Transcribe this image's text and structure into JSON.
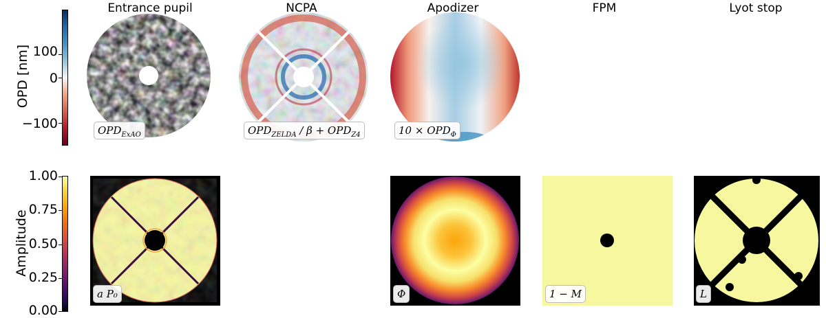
{
  "figure": {
    "columns": [
      {
        "title": "Entrance pupil"
      },
      {
        "title": "NCPA"
      },
      {
        "title": "Apodizer"
      },
      {
        "title": "FPM"
      },
      {
        "title": "Lyot stop"
      }
    ],
    "top_row": {
      "ylabel": "OPD [nm]",
      "colormap": "RdBu",
      "colorbar_ticks": [
        "100",
        "0",
        "−100"
      ],
      "colorbar_range": [
        -150,
        150
      ],
      "panels": [
        {
          "label_main": "OPD",
          "label_sub": "ExAO",
          "label_rest": ""
        },
        {
          "label_main": "OPD",
          "label_sub": "ZELDA",
          "label_rest": " / β + OPD",
          "label_sub2": "Z4"
        },
        {
          "label_main": "10 × OPD",
          "label_sub": "Φ",
          "label_rest": ""
        }
      ]
    },
    "bottom_row": {
      "ylabel": "Amplitude",
      "colormap": "inferno",
      "colorbar_ticks": [
        "1.00",
        "0.75",
        "0.50",
        "0.25",
        "0.00"
      ],
      "colorbar_range": [
        0,
        1
      ],
      "panels": [
        {
          "label": "a P₀"
        },
        {
          "label": "Φ"
        },
        {
          "label": "1 − M"
        },
        {
          "label": "L"
        }
      ]
    },
    "colors": {
      "red": "#a50026",
      "blue": "#1f4e8c",
      "pale_yellow": "#f7f7a0",
      "black": "#000000"
    }
  }
}
